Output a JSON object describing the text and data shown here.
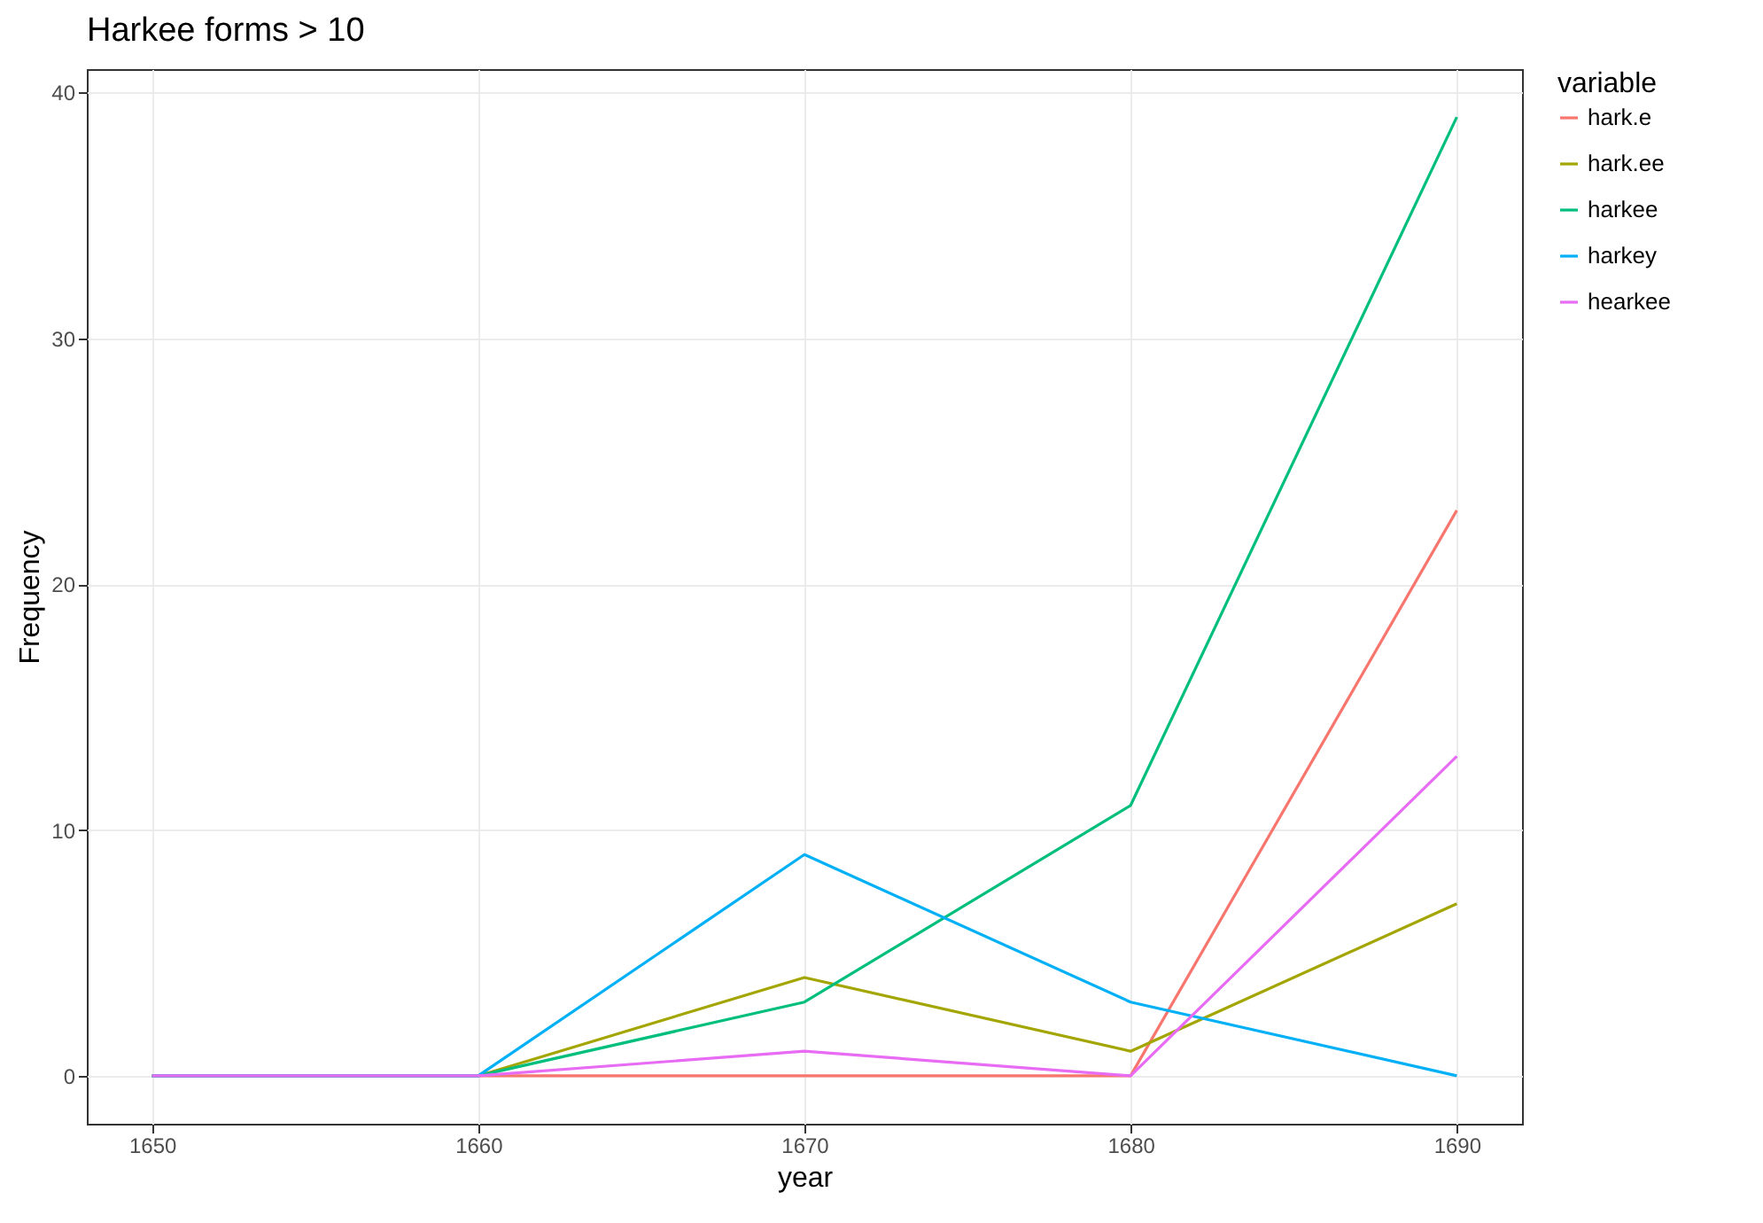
{
  "chart_data": {
    "type": "line",
    "title": "Harkee forms > 10",
    "xlabel": "year",
    "ylabel": "Frequency",
    "legend_title": "variable",
    "x": [
      1650,
      1660,
      1670,
      1680,
      1690
    ],
    "series": [
      {
        "name": "hark.e",
        "color": "#f8766d",
        "values": [
          0,
          0,
          0,
          0,
          23
        ]
      },
      {
        "name": "hark.ee",
        "color": "#a3a500",
        "values": [
          0,
          0,
          4,
          1,
          7
        ]
      },
      {
        "name": "harkee",
        "color": "#00bf7d",
        "values": [
          0,
          0,
          3,
          11,
          39
        ]
      },
      {
        "name": "harkey",
        "color": "#00b0f6",
        "values": [
          0,
          0,
          9,
          3,
          0
        ]
      },
      {
        "name": "hearkee",
        "color": "#e76bf3",
        "values": [
          0,
          0,
          1,
          0,
          13
        ]
      }
    ],
    "xlim": [
      1648,
      1692
    ],
    "xticks": [
      1650,
      1660,
      1670,
      1680,
      1690
    ],
    "ylim": [
      -1.95,
      40.95
    ],
    "yticks": [
      0,
      10,
      20,
      30,
      40
    ],
    "grid": true,
    "legend": "right"
  }
}
